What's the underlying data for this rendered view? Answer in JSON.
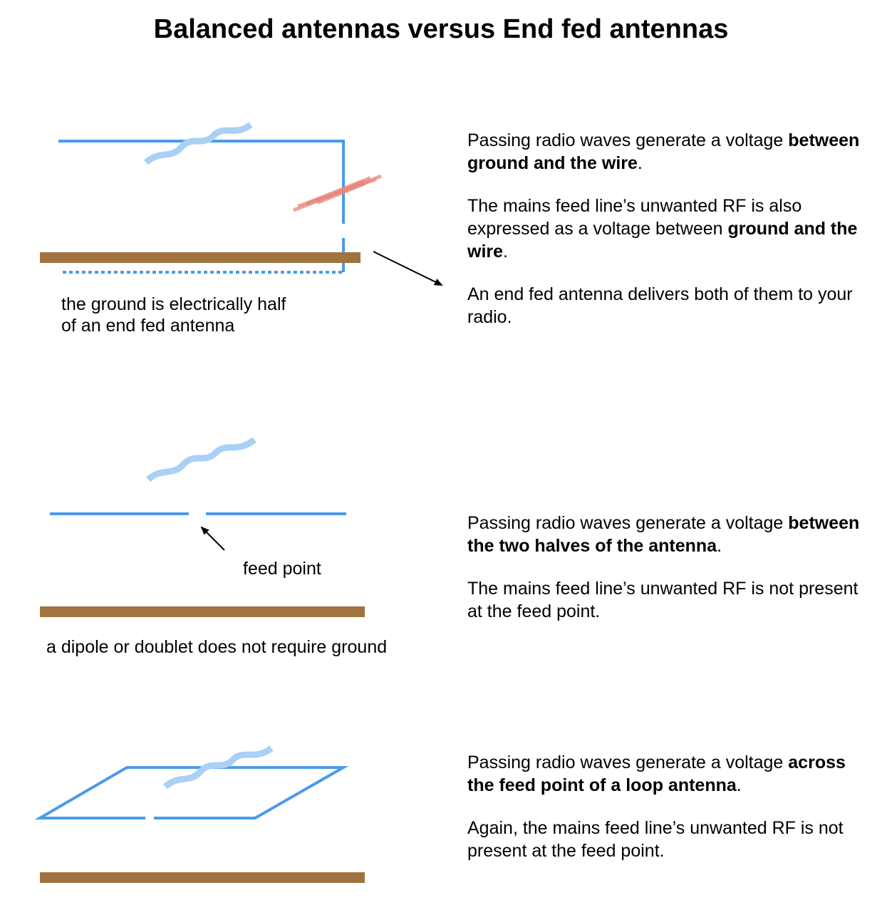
{
  "title": "Balanced antennas versus End fed antennas",
  "colors": {
    "wire": "#4a9be8",
    "wave": "#a9d0f5",
    "unwanted_rf": "#e8877c",
    "ground": "#a0733f",
    "arrow": "#000000"
  },
  "sections": [
    {
      "id": "end-fed",
      "label_lines": [
        "the ground is electrically half",
        "of an end fed antenna"
      ],
      "paragraphs": [
        [
          {
            "t": "Passing radio waves generate a voltage "
          },
          {
            "t": "between ground and the wire",
            "b": true
          },
          {
            "t": "."
          }
        ],
        [
          {
            "t": "The mains feed line’s unwanted RF is also expressed as a voltage between "
          },
          {
            "t": "ground and the wire",
            "b": true
          },
          {
            "t": "."
          }
        ],
        [
          {
            "t": "An end fed antenna delivers both of them to your radio."
          }
        ]
      ]
    },
    {
      "id": "dipole",
      "feed_label": "feed point",
      "label_lines": [
        "a dipole or doublet does not require ground"
      ],
      "paragraphs": [
        [
          {
            "t": "Passing radio waves generate a voltage "
          },
          {
            "t": "between the two halves of the antenna",
            "b": true
          },
          {
            "t": "."
          }
        ],
        [
          {
            "t": "The mains feed line’s unwanted RF is not present at the feed point."
          }
        ]
      ]
    },
    {
      "id": "loop",
      "paragraphs": [
        [
          {
            "t": "Passing radio waves generate a voltage "
          },
          {
            "t": "across the feed point of a loop antenna",
            "b": true
          },
          {
            "t": "."
          }
        ],
        [
          {
            "t": "Again, the mains feed line’s unwanted RF is not present at the feed point."
          }
        ]
      ]
    }
  ]
}
